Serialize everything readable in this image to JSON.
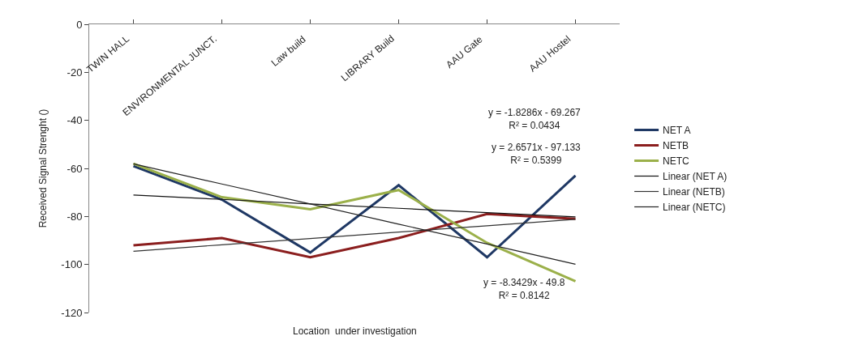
{
  "chart_data": {
    "type": "line",
    "ylabel": "Received Signal Strenght ()",
    "xlabel": "Location  under investigation",
    "categories": [
      "TWIN HALL",
      "ENVIRONMENTAL JUNCT.",
      "Law build",
      "LIBRARY Build",
      "AAU Gate",
      "AAU Hostel"
    ],
    "series": [
      {
        "name": "NET A",
        "color": "#1f3864",
        "values": [
          -59,
          -73,
          -95,
          -67,
          -97,
          -63
        ]
      },
      {
        "name": "NETB",
        "color": "#8b1e1e",
        "values": [
          -92,
          -89,
          -97,
          -89,
          -79,
          -81
        ]
      },
      {
        "name": "NETC",
        "color": "#9bb04a",
        "values": [
          -58,
          -72,
          -77,
          -69,
          -91,
          -107
        ]
      },
      {
        "name": "Linear (NET A)",
        "color": "#111111",
        "values": [
          -71.1,
          -72.9,
          -74.8,
          -76.6,
          -78.4,
          -80.2
        ]
      },
      {
        "name": "Linear (NETB)",
        "color": "#333333",
        "values": [
          -94.5,
          -91.8,
          -89.2,
          -86.5,
          -83.9,
          -81.2
        ]
      },
      {
        "name": "Linear (NETC)",
        "color": "#222222",
        "values": [
          -58.1,
          -66.5,
          -74.8,
          -83.2,
          -91.5,
          -99.9
        ]
      }
    ],
    "ylim": [
      -120,
      0
    ],
    "yticks": [
      0,
      -20,
      -40,
      -60,
      -80,
      -100,
      -120
    ],
    "annotations": [
      "y = -1.8286x - 69.267\nR² = 0.0434",
      "y = 2.6571x - 97.133\nR² = 0.5399",
      "y = -8.3429x - 49.8\nR² = 0.8142"
    ],
    "legend": "right",
    "marker": "none",
    "line_style": "solid"
  }
}
